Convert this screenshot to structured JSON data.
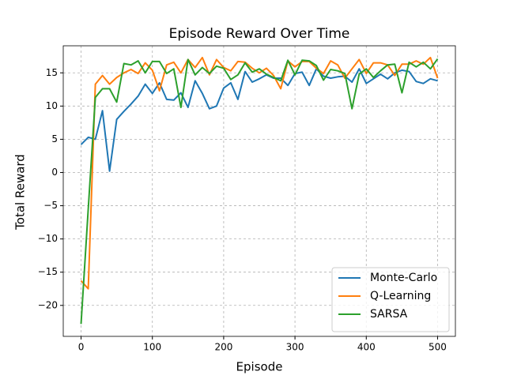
{
  "chart_data": {
    "type": "line",
    "title": "Episode Reward Over Time",
    "x_label": "Episode",
    "y_label": "Total Reward",
    "x": [
      0,
      10,
      20,
      30,
      40,
      50,
      60,
      70,
      80,
      90,
      100,
      110,
      120,
      130,
      140,
      150,
      160,
      170,
      180,
      190,
      200,
      210,
      220,
      230,
      240,
      250,
      260,
      270,
      280,
      290,
      300,
      310,
      320,
      330,
      340,
      350,
      360,
      370,
      380,
      390,
      400,
      410,
      420,
      430,
      440,
      450,
      460,
      470,
      480,
      490,
      500
    ],
    "series": [
      {
        "name": "Monte-Carlo",
        "color": "#1f77b4",
        "values": [
          4.2,
          5.3,
          5.0,
          9.3,
          0.2,
          8.0,
          9.2,
          10.3,
          11.5,
          13.3,
          11.9,
          13.5,
          11.0,
          10.9,
          12.0,
          9.8,
          13.8,
          11.9,
          9.6,
          10.0,
          12.7,
          13.5,
          11.0,
          15.2,
          13.6,
          14.1,
          14.7,
          14.2,
          14.2,
          13.1,
          14.9,
          15.1,
          13.1,
          15.6,
          14.5,
          14.2,
          14.4,
          14.5,
          13.6,
          15.6,
          13.4,
          14.1,
          14.8,
          14.1,
          15.0,
          15.4,
          15.2,
          13.7,
          13.4,
          14.1,
          13.8
        ]
      },
      {
        "name": "Q-Learning",
        "color": "#ff7f0e",
        "values": [
          -16.3,
          -17.5,
          13.3,
          14.6,
          13.3,
          14.3,
          15.0,
          15.5,
          14.9,
          16.5,
          15.4,
          12.3,
          16.2,
          16.6,
          15.0,
          17.0,
          15.8,
          17.3,
          14.7,
          17.0,
          15.8,
          15.3,
          16.7,
          16.6,
          15.7,
          15.0,
          15.7,
          14.6,
          12.6,
          16.8,
          15.9,
          16.7,
          16.7,
          15.7,
          14.9,
          16.8,
          16.2,
          14.2,
          15.6,
          17.0,
          14.9,
          16.5,
          16.5,
          16.2,
          14.6,
          16.3,
          16.3,
          16.8,
          16.3,
          17.3,
          14.2
        ]
      },
      {
        "name": "SARSA",
        "color": "#2ca02c",
        "values": [
          -22.8,
          -5.5,
          11.3,
          12.6,
          12.6,
          10.6,
          16.4,
          16.2,
          16.8,
          15.0,
          16.7,
          16.7,
          14.9,
          15.6,
          9.8,
          17.0,
          14.7,
          15.8,
          14.9,
          16.0,
          15.7,
          14.0,
          14.7,
          16.5,
          15.1,
          15.6,
          14.8,
          14.3,
          13.8,
          16.9,
          14.7,
          16.9,
          16.8,
          16.1,
          13.9,
          15.5,
          15.3,
          14.9,
          9.6,
          14.8,
          15.6,
          14.3,
          15.3,
          16.2,
          16.3,
          12.0,
          16.6,
          15.9,
          16.6,
          15.6,
          17.1
        ]
      }
    ],
    "xlim": [
      -25,
      525
    ],
    "ylim": [
      -24.66,
      19.07
    ],
    "xticks": [
      0,
      100,
      200,
      300,
      400,
      500
    ],
    "yticks": [
      {
        "value": -20,
        "label": "−20"
      },
      {
        "value": -15,
        "label": "−15"
      },
      {
        "value": -10,
        "label": "−10"
      },
      {
        "value": -5,
        "label": "−5"
      },
      0,
      5,
      10,
      15
    ],
    "grid": true,
    "legend": "lower right"
  }
}
